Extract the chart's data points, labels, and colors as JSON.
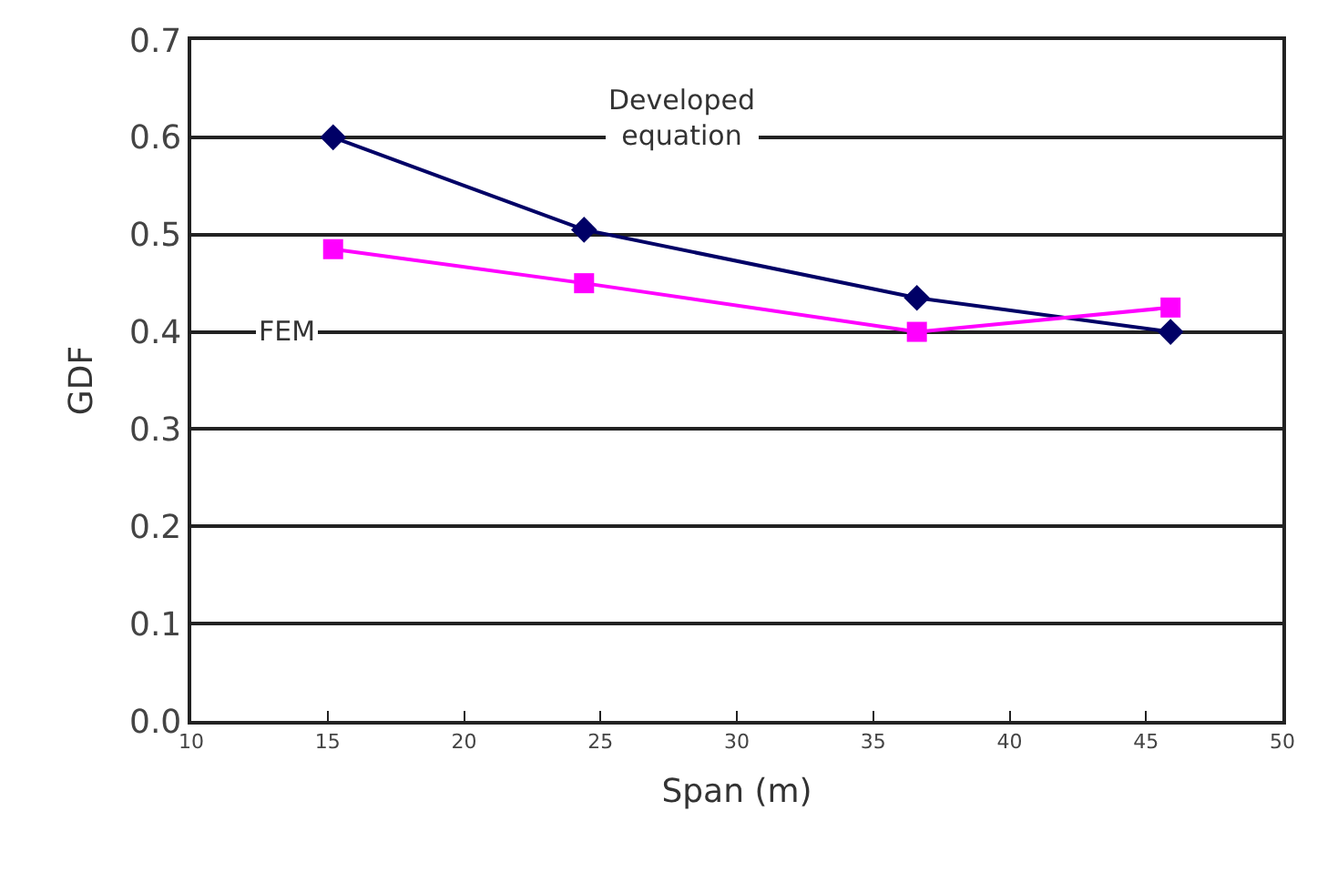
{
  "chart_data": {
    "type": "line",
    "xlabel": "Span (m)",
    "ylabel": "GDF",
    "x": [
      15.2,
      24.4,
      36.6,
      45.9
    ],
    "series": [
      {
        "name": "Developed equation",
        "color": "#000066",
        "values": [
          0.6,
          0.505,
          0.435,
          0.4
        ],
        "marker": "diamond"
      },
      {
        "name": "FEM",
        "color": "#ff00ff",
        "values": [
          0.485,
          0.45,
          0.4,
          0.425
        ],
        "marker": "square"
      }
    ],
    "xlim": [
      10,
      50
    ],
    "xticks": [
      10,
      15,
      20,
      25,
      30,
      35,
      40,
      45,
      50
    ],
    "ylim": [
      0,
      0.7
    ],
    "yticks": [
      "0.0",
      0.1,
      0.2,
      0.3,
      0.4,
      0.5,
      0.6,
      0.7
    ],
    "grid": "y",
    "legend": false
  }
}
